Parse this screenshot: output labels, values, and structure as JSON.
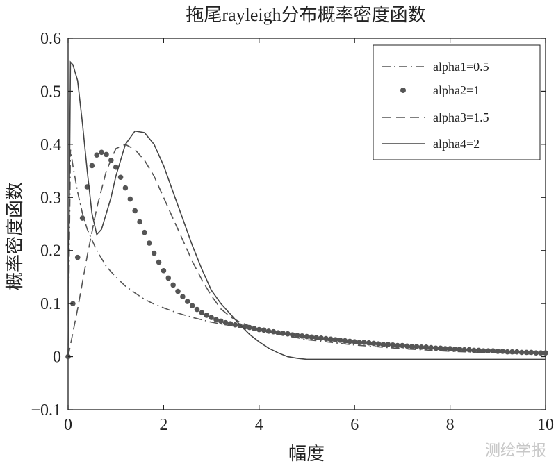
{
  "chart_data": {
    "type": "line",
    "title": "拖尾rayleigh分布概率密度函数",
    "xlabel": "幅度",
    "ylabel": "概率密度函数",
    "xlim": [
      0,
      10
    ],
    "ylim": [
      -0.1,
      0.6
    ],
    "xticks": [
      "0",
      "2",
      "4",
      "6",
      "8",
      "10"
    ],
    "yticks": [
      "−0.1",
      "0",
      "0.1",
      "0.2",
      "0.3",
      "0.4",
      "0.5",
      "0.6"
    ],
    "grid": false,
    "legend_position": "top-right",
    "series": [
      {
        "name": "alpha1=0.5",
        "style": "dash-dot",
        "color": "#555555",
        "x": [
          0,
          0.05,
          0.1,
          0.2,
          0.3,
          0.4,
          0.5,
          0.6,
          0.7,
          0.8,
          0.9,
          1.0,
          1.2,
          1.4,
          1.6,
          1.8,
          2.0,
          2.3,
          2.6,
          3.0,
          3.5,
          4.0,
          5.0,
          6.0,
          7.0,
          8.0,
          9.0,
          10.0
        ],
        "y": [
          0,
          0.39,
          0.36,
          0.31,
          0.27,
          0.24,
          0.22,
          0.2,
          0.185,
          0.17,
          0.16,
          0.15,
          0.133,
          0.12,
          0.108,
          0.099,
          0.092,
          0.082,
          0.074,
          0.065,
          0.057,
          0.05,
          0.032,
          0.022,
          0.015,
          0.01,
          0.007,
          0.004
        ]
      },
      {
        "name": "alpha2=1",
        "style": "dots",
        "color": "#555555",
        "x": [
          0,
          0.1,
          0.2,
          0.3,
          0.4,
          0.5,
          0.6,
          0.7,
          0.8,
          0.9,
          1.0,
          1.1,
          1.2,
          1.3,
          1.4,
          1.5,
          1.6,
          1.7,
          1.8,
          1.9,
          2.0,
          2.1,
          2.2,
          2.3,
          2.4,
          2.5,
          2.6,
          2.7,
          2.8,
          2.9,
          3.0,
          3.1,
          3.2,
          3.3,
          3.4,
          3.5,
          3.6,
          3.7,
          3.8,
          3.9,
          4.0,
          4.1,
          4.2,
          4.3,
          4.4,
          4.5,
          4.6,
          4.7,
          4.8,
          4.9,
          5.0,
          5.1,
          5.2,
          5.3,
          5.4,
          5.5,
          5.6,
          5.7,
          5.8,
          5.9,
          6.0,
          6.1,
          6.2,
          6.3,
          6.4,
          6.5,
          6.6,
          6.7,
          6.8,
          6.9,
          7.0,
          7.1,
          7.2,
          7.3,
          7.4,
          7.5,
          7.6,
          7.7,
          7.8,
          7.9,
          8.0,
          8.1,
          8.2,
          8.3,
          8.4,
          8.5,
          8.6,
          8.7,
          8.8,
          8.9,
          9.0,
          9.1,
          9.2,
          9.3,
          9.4,
          9.5,
          9.6,
          9.7,
          9.8,
          9.9,
          10.0
        ],
        "y": [
          0,
          0.1,
          0.187,
          0.261,
          0.32,
          0.36,
          0.38,
          0.385,
          0.381,
          0.37,
          0.357,
          0.338,
          0.318,
          0.297,
          0.275,
          0.254,
          0.234,
          0.214,
          0.195,
          0.178,
          0.162,
          0.148,
          0.135,
          0.123,
          0.113,
          0.104,
          0.096,
          0.089,
          0.083,
          0.078,
          0.074,
          0.07,
          0.067,
          0.064,
          0.062,
          0.06,
          0.058,
          0.056,
          0.055,
          0.053,
          0.051,
          0.05,
          0.048,
          0.047,
          0.045,
          0.044,
          0.043,
          0.041,
          0.04,
          0.039,
          0.038,
          0.037,
          0.036,
          0.035,
          0.034,
          0.033,
          0.032,
          0.031,
          0.03,
          0.029,
          0.028,
          0.027,
          0.027,
          0.026,
          0.025,
          0.024,
          0.023,
          0.023,
          0.022,
          0.021,
          0.021,
          0.02,
          0.019,
          0.019,
          0.018,
          0.018,
          0.017,
          0.016,
          0.016,
          0.015,
          0.015,
          0.014,
          0.014,
          0.013,
          0.013,
          0.012,
          0.012,
          0.011,
          0.011,
          0.011,
          0.01,
          0.01,
          0.009,
          0.009,
          0.009,
          0.008,
          0.008,
          0.008,
          0.007,
          0.007,
          0.007
        ]
      },
      {
        "name": "alpha3=1.5",
        "style": "dashed",
        "color": "#555555",
        "x": [
          0,
          0.2,
          0.4,
          0.6,
          0.8,
          1.0,
          1.2,
          1.4,
          1.6,
          1.8,
          2.0,
          2.2,
          2.4,
          2.6,
          2.8,
          3.0,
          3.2,
          3.4,
          3.6,
          3.8,
          4.0,
          4.5,
          5.0,
          5.5,
          6.0,
          7.0,
          8.0,
          9.0,
          10.0
        ],
        "y": [
          0,
          0.09,
          0.19,
          0.28,
          0.35,
          0.392,
          0.4,
          0.39,
          0.37,
          0.34,
          0.3,
          0.26,
          0.22,
          0.18,
          0.145,
          0.115,
          0.09,
          0.075,
          0.065,
          0.058,
          0.052,
          0.043,
          0.036,
          0.03,
          0.025,
          0.018,
          0.012,
          0.008,
          0.005
        ]
      },
      {
        "name": "alpha4=2",
        "style": "solid",
        "color": "#444444",
        "x": [
          0,
          0.05,
          0.1,
          0.2,
          0.3,
          0.4,
          0.5,
          0.6,
          0.7,
          0.8,
          0.9,
          1.0,
          1.2,
          1.4,
          1.6,
          1.8,
          2.0,
          2.2,
          2.4,
          2.6,
          2.8,
          3.0,
          3.2,
          3.4,
          3.6,
          3.8,
          4.0,
          4.2,
          4.4,
          4.6,
          4.8,
          5.0,
          5.5,
          6.0,
          7.0,
          8.0,
          9.0,
          10.0
        ],
        "y": [
          0,
          0.555,
          0.55,
          0.52,
          0.44,
          0.35,
          0.27,
          0.23,
          0.24,
          0.27,
          0.3,
          0.34,
          0.4,
          0.425,
          0.422,
          0.4,
          0.36,
          0.31,
          0.26,
          0.21,
          0.165,
          0.125,
          0.1,
          0.08,
          0.06,
          0.042,
          0.028,
          0.016,
          0.007,
          0.0,
          -0.003,
          -0.005,
          -0.005,
          -0.005,
          -0.005,
          -0.005,
          -0.005,
          -0.005
        ]
      }
    ]
  },
  "watermark": "测绘学报"
}
